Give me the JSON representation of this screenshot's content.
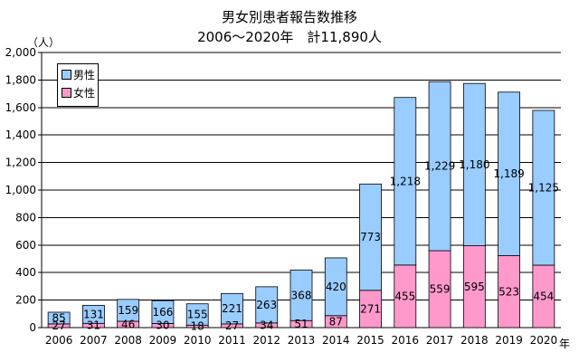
{
  "chart_data": {
    "type": "bar",
    "stacked": true,
    "title": "男女別患者報告数推移",
    "subtitle": "2006～2020年　計11,890人",
    "ylabel": "（人）",
    "xlabel": "年",
    "categories": [
      "2006",
      "2007",
      "2008",
      "2009",
      "2010",
      "2011",
      "2012",
      "2013",
      "2014",
      "2015",
      "2016",
      "2017",
      "2018",
      "2019",
      "2020"
    ],
    "series": [
      {
        "name": "女性",
        "color": "#ff99cc",
        "values": [
          27,
          31,
          46,
          30,
          18,
          27,
          34,
          51,
          87,
          271,
          455,
          559,
          595,
          523,
          454
        ]
      },
      {
        "name": "男性",
        "color": "#99ccff",
        "values": [
          85,
          131,
          159,
          166,
          155,
          221,
          263,
          368,
          420,
          773,
          1218,
          1229,
          1180,
          1189,
          1125
        ]
      }
    ],
    "legend_order": [
      "男性",
      "女性"
    ],
    "legend_position": "top-left",
    "ylim": [
      0,
      2000
    ],
    "yticks": [
      0,
      200,
      400,
      600,
      800,
      1000,
      1200,
      1400,
      1600,
      1800,
      2000
    ],
    "ytick_labels": [
      "0",
      "200",
      "400",
      "600",
      "800",
      "1,000",
      "1,200",
      "1,400",
      "1,600",
      "1,800",
      "2,000"
    ],
    "grid": true
  }
}
